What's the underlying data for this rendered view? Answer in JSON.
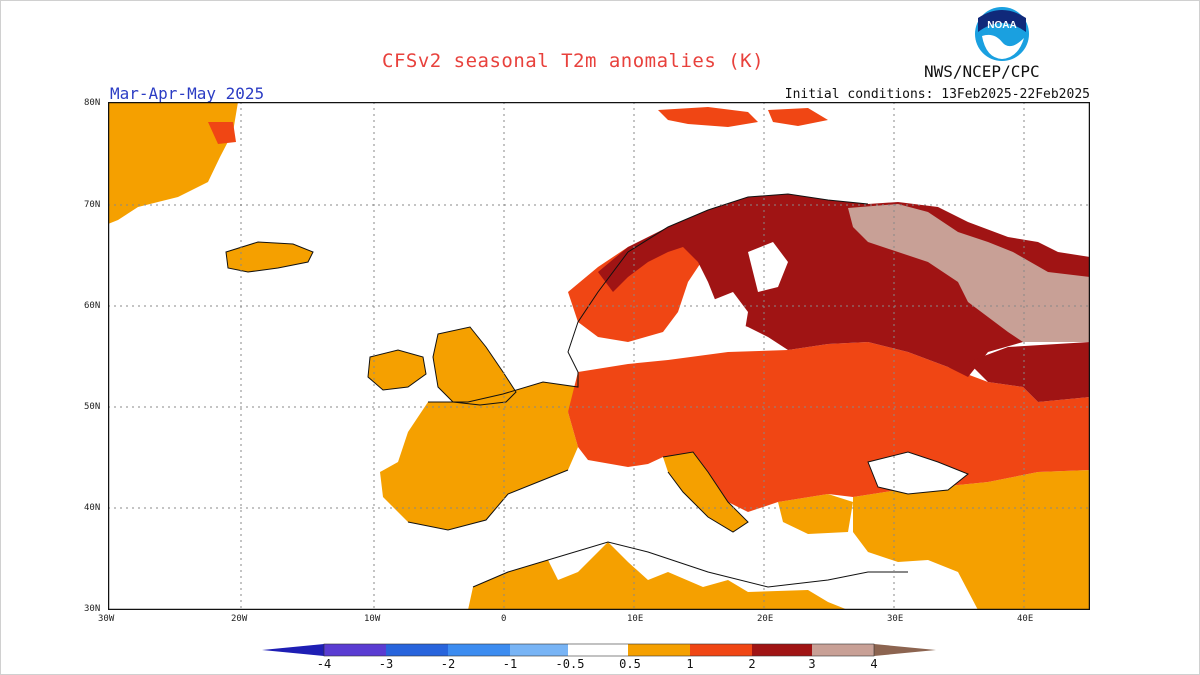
{
  "title": "CFSv2 seasonal T2m anomalies (K)",
  "season": "Mar-Apr-May 2025",
  "initial_conditions": "Initial conditions: 13Feb2025-22Feb2025",
  "agency": "NWS/NCEP/CPC",
  "logo_text": "NOAA",
  "logo_icon": "noaa-logo-icon",
  "lat_labels": [
    "80N",
    "70N",
    "60N",
    "50N",
    "40N",
    "30N"
  ],
  "lon_labels": [
    "30W",
    "20W",
    "10W",
    "0",
    "10E",
    "20E",
    "30E",
    "40E"
  ],
  "legend": {
    "ticks": [
      "-4",
      "-3",
      "-2",
      "-1",
      "-0.5",
      "0.5",
      "1",
      "2",
      "3",
      "4"
    ],
    "colors": {
      "lt_minus4": "#1e1eb4",
      "m4_m3": "#5a3cd2",
      "m3_m2": "#2864dc",
      "m2_m1": "#3c8cf0",
      "m1_m05": "#78b4f5",
      "m05_05": "#ffffff",
      "p05_1": "#f5a000",
      "p1_2": "#f04614",
      "p2_3": "#a01414",
      "p3_4": "#c8a096",
      "gt4": "#8c6450"
    }
  }
}
